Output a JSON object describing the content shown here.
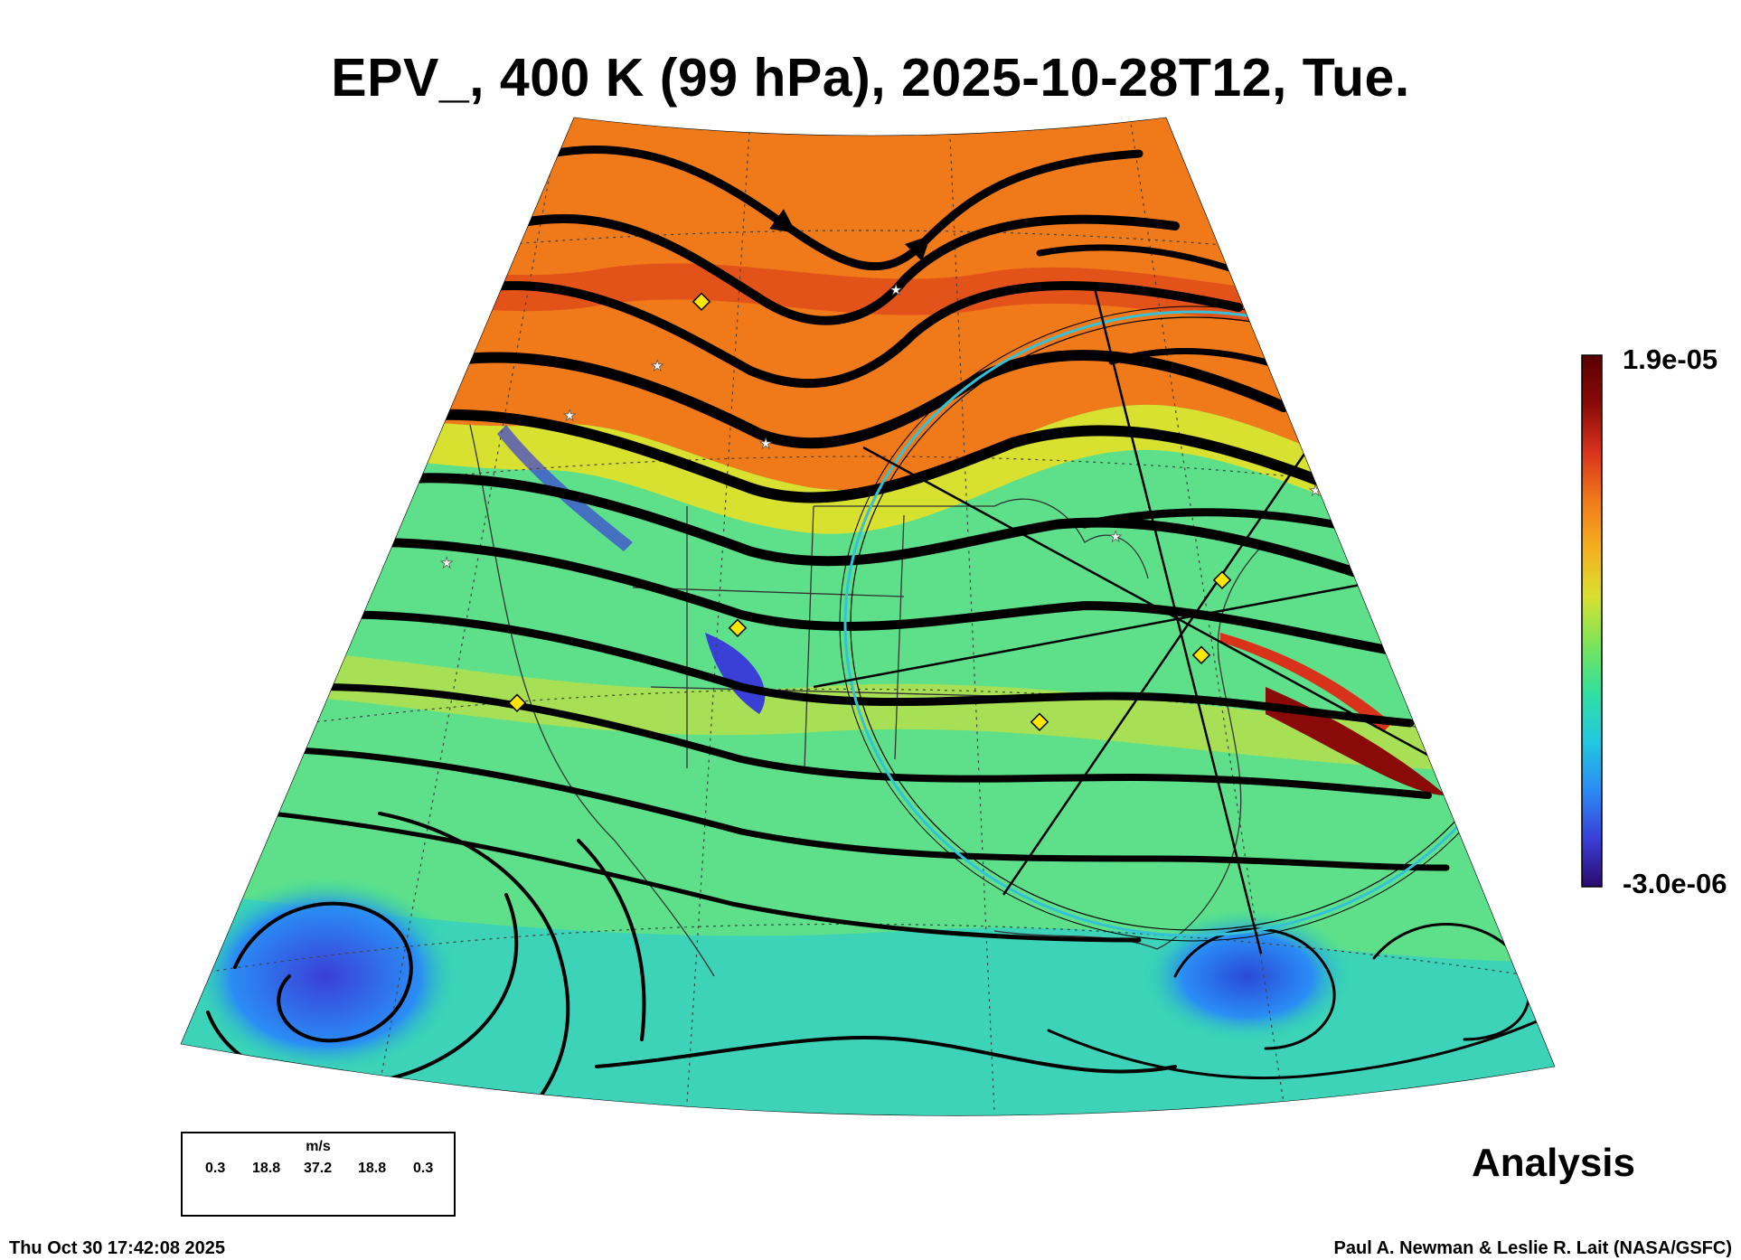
{
  "header": {
    "title": "EPV_, 400 K (99 hPa), 2025-10-28T12, Tue."
  },
  "colorbar": {
    "max_label": "1.9e-05",
    "min_label": "-3.0e-06",
    "max_value": 1.9e-05,
    "min_value": -3e-06,
    "colors": [
      "#2a0a6e",
      "#3a3fd8",
      "#2a8df5",
      "#22c8e0",
      "#30e0a0",
      "#7ae45a",
      "#d8e030",
      "#f5b020",
      "#f07a1a",
      "#d8321a",
      "#8a0a0a",
      "#5a0000"
    ]
  },
  "wind_legend": {
    "unit": "m/s",
    "values": [
      "0.3",
      "18.8",
      "37.2",
      "18.8",
      "0.3"
    ]
  },
  "labels": {
    "analysis": "Analysis",
    "timestamp": "Thu Oct 30 17:42:08 2025",
    "credit": "Paul A. Newman & Leslie R. Lait (NASA/GSFC)"
  },
  "map": {
    "projection": "polar stereographic sector",
    "field_colors": {
      "high": "#f07a1a",
      "mid": "#7ae45a",
      "low": "#22c8e0",
      "trough": "#3a3fd8",
      "peak": "#8a0a0a"
    },
    "overlay_circle_color": "#33c2d8",
    "marker_color": "#ffe600"
  }
}
